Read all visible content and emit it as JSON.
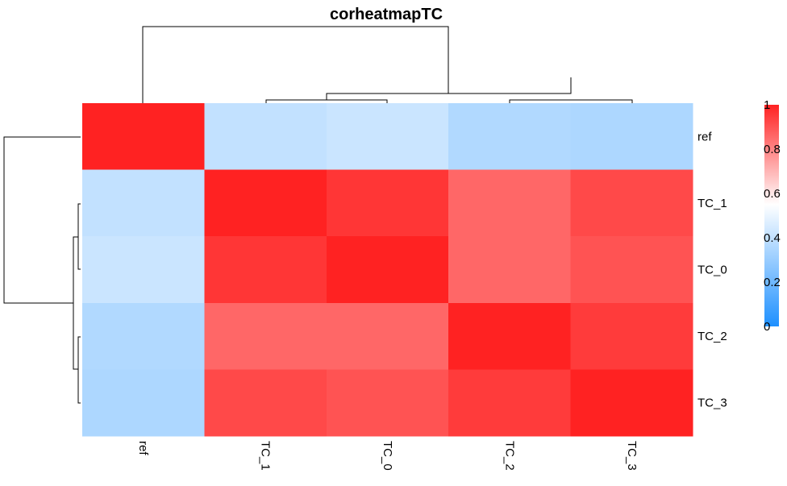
{
  "chart_data": {
    "type": "heatmap",
    "title": "corheatmapTC",
    "rows": [
      "ref",
      "TC_1",
      "TC_0",
      "TC_2",
      "TC_3"
    ],
    "columns": [
      "ref",
      "TC_1",
      "TC_0",
      "TC_2",
      "TC_3"
    ],
    "values": [
      [
        1.0,
        0.4,
        0.42,
        0.36,
        0.35
      ],
      [
        0.4,
        1.0,
        0.96,
        0.86,
        0.92
      ],
      [
        0.42,
        0.96,
        1.0,
        0.86,
        0.9
      ],
      [
        0.36,
        0.86,
        0.86,
        1.0,
        0.95
      ],
      [
        0.35,
        0.92,
        0.9,
        0.95,
        1.0
      ]
    ],
    "color_scale": {
      "low": "#1e90ff",
      "mid": "#ffffff",
      "high": "#ff2222",
      "domain": [
        0,
        0.55,
        1
      ]
    },
    "legend": {
      "ticks": [
        "0",
        "0.2",
        "0.4",
        "0.6",
        "0.8",
        "1"
      ],
      "tick_values": [
        0,
        0.2,
        0.4,
        0.6,
        0.8,
        1
      ],
      "position": "right"
    },
    "row_dendrogram": true,
    "column_dendrogram": true
  }
}
